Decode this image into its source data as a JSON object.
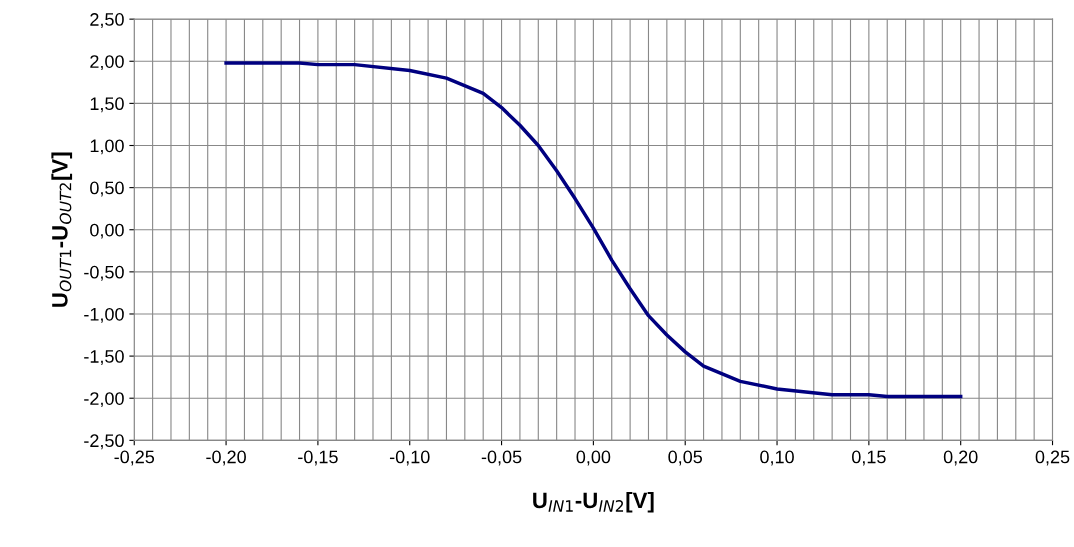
{
  "chart_data": {
    "type": "line",
    "xlabel": "U$_{IN1}$-U$_{IN2}$[V]",
    "ylabel": "U$_{OUT1}$-U$_{OUT2}$[V]",
    "xlim": [
      -0.25,
      0.25
    ],
    "ylim": [
      -2.5,
      2.5
    ],
    "grid": true,
    "marker": "none",
    "line_style": "solid",
    "xticks": [
      {
        "value": -0.25,
        "label": "-0,25"
      },
      {
        "value": -0.24,
        "label": null
      },
      {
        "value": -0.23,
        "label": null
      },
      {
        "value": -0.22,
        "label": null
      },
      {
        "value": -0.21,
        "label": null
      },
      {
        "value": -0.2,
        "label": "-0,20"
      },
      {
        "value": -0.19,
        "label": null
      },
      {
        "value": -0.18,
        "label": null
      },
      {
        "value": -0.17,
        "label": null
      },
      {
        "value": -0.16,
        "label": null
      },
      {
        "value": -0.15,
        "label": "-0,15"
      },
      {
        "value": -0.14,
        "label": null
      },
      {
        "value": -0.13,
        "label": null
      },
      {
        "value": -0.12,
        "label": null
      },
      {
        "value": -0.11,
        "label": null
      },
      {
        "value": -0.1,
        "label": "-0,10"
      },
      {
        "value": -0.09,
        "label": null
      },
      {
        "value": -0.08,
        "label": null
      },
      {
        "value": -0.07,
        "label": null
      },
      {
        "value": -0.06,
        "label": null
      },
      {
        "value": -0.05,
        "label": "-0,05"
      },
      {
        "value": -0.04,
        "label": null
      },
      {
        "value": -0.03,
        "label": null
      },
      {
        "value": -0.02,
        "label": null
      },
      {
        "value": -0.01,
        "label": null
      },
      {
        "value": 0,
        "label": "0,00"
      },
      {
        "value": 0.01,
        "label": null
      },
      {
        "value": 0.02,
        "label": null
      },
      {
        "value": 0.03,
        "label": null
      },
      {
        "value": 0.04,
        "label": null
      },
      {
        "value": 0.05,
        "label": "0,05"
      },
      {
        "value": 0.06,
        "label": null
      },
      {
        "value": 0.07,
        "label": null
      },
      {
        "value": 0.08,
        "label": null
      },
      {
        "value": 0.09,
        "label": null
      },
      {
        "value": 0.1,
        "label": "0,10"
      },
      {
        "value": 0.11,
        "label": null
      },
      {
        "value": 0.12,
        "label": null
      },
      {
        "value": 0.13,
        "label": null
      },
      {
        "value": 0.14,
        "label": null
      },
      {
        "value": 0.15,
        "label": "0,15"
      },
      {
        "value": 0.16,
        "label": null
      },
      {
        "value": 0.17,
        "label": null
      },
      {
        "value": 0.18,
        "label": null
      },
      {
        "value": 0.19,
        "label": null
      },
      {
        "value": 0.2,
        "label": "0,20"
      },
      {
        "value": 0.21,
        "label": null
      },
      {
        "value": 0.22,
        "label": null
      },
      {
        "value": 0.23,
        "label": null
      },
      {
        "value": 0.24,
        "label": null
      },
      {
        "value": 0.25,
        "label": "0,25"
      }
    ],
    "yticks": [
      {
        "value": -2.5,
        "label": "-2,50"
      },
      {
        "value": -2.0,
        "label": "-2,00"
      },
      {
        "value": -1.5,
        "label": "-1,50"
      },
      {
        "value": -1.0,
        "label": "-1,00"
      },
      {
        "value": -0.5,
        "label": "-0,50"
      },
      {
        "value": 0,
        "label": "0,00"
      },
      {
        "value": 0.5,
        "label": "0,50"
      },
      {
        "value": 1.0,
        "label": "1,00"
      },
      {
        "value": 1.5,
        "label": "1,50"
      },
      {
        "value": 2.0,
        "label": "2,00"
      },
      {
        "value": 2.5,
        "label": "2,50"
      }
    ],
    "series": [
      {
        "color": "#000080",
        "x": [
          -0.2,
          -0.16,
          -0.15,
          -0.13,
          -0.1,
          -0.08,
          -0.06,
          -0.05,
          -0.04,
          -0.03,
          -0.02,
          -0.01,
          0,
          0.01,
          0.02,
          0.03,
          0.04,
          0.05,
          0.06,
          0.08,
          0.1,
          0.13,
          0.15,
          0.16,
          0.2
        ],
        "values": [
          1.98,
          1.98,
          1.96,
          1.96,
          1.89,
          1.8,
          1.62,
          1.45,
          1.24,
          1.0,
          0.7,
          0.37,
          0.02,
          -0.36,
          -0.7,
          -1.02,
          -1.25,
          -1.45,
          -1.62,
          -1.8,
          -1.89,
          -1.96,
          -1.96,
          -1.98,
          -1.98
        ]
      }
    ]
  }
}
